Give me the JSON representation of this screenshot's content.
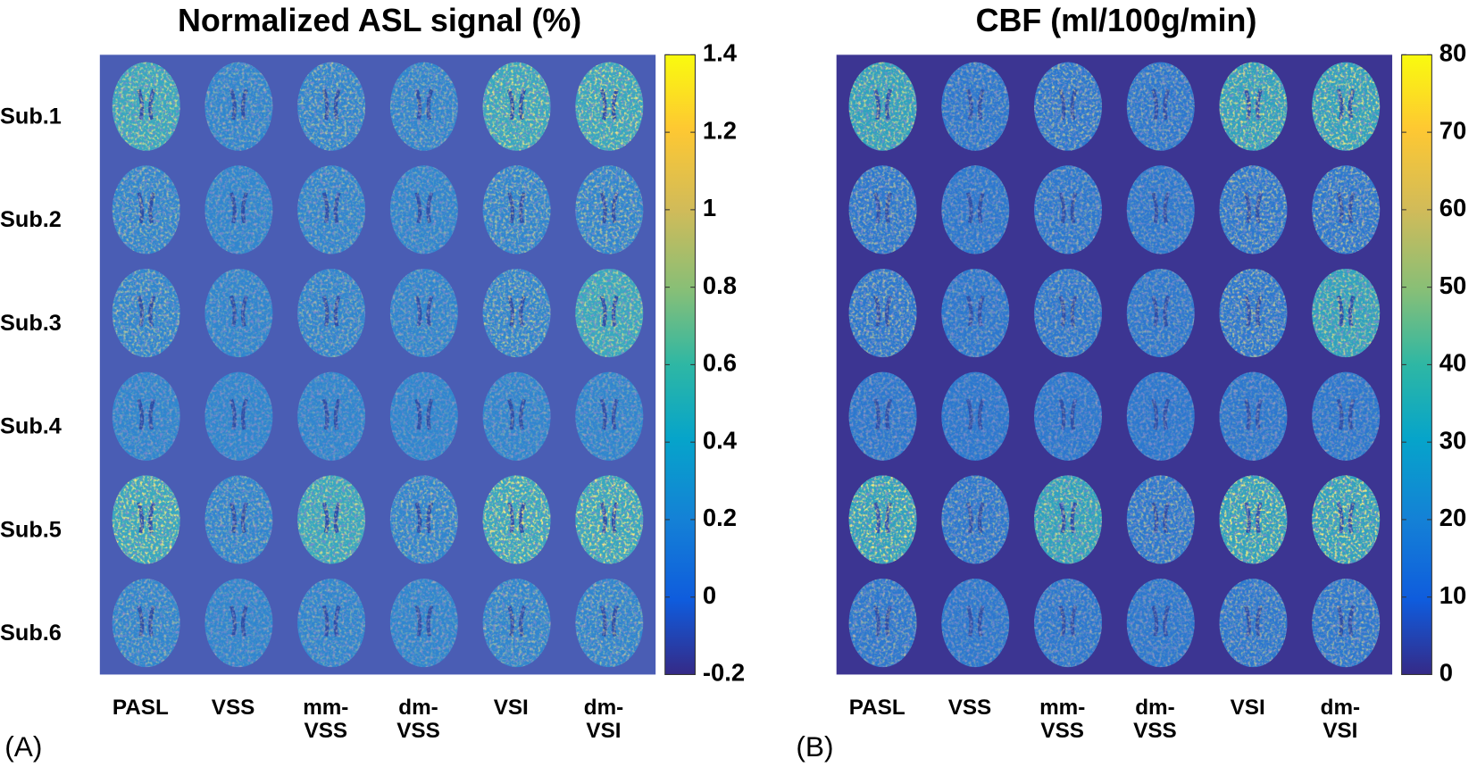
{
  "panels": [
    {
      "label": "(A)",
      "title": "Normalized ASL signal (%)",
      "rows": [
        "Sub.1",
        "Sub.2",
        "Sub.3",
        "Sub.4",
        "Sub.5",
        "Sub.6"
      ],
      "columns": [
        [
          "PASL"
        ],
        [
          "VSS"
        ],
        [
          "mm-",
          "VSS"
        ],
        [
          "dm-",
          "VSS"
        ],
        [
          "VSI"
        ],
        [
          "dm-",
          "VSI"
        ]
      ],
      "colorbar": {
        "lim": [
          -0.2,
          1.4
        ],
        "ticks": [
          1.4,
          1.2,
          1,
          0.8,
          0.6,
          0.4,
          0.2,
          0,
          -0.2
        ]
      }
    },
    {
      "label": "(B)",
      "title": "CBF (ml/100g/min)",
      "columns": [
        [
          "PASL"
        ],
        [
          "VSS"
        ],
        [
          "mm-",
          "VSS"
        ],
        [
          "dm-",
          "VSS"
        ],
        [
          "VSI"
        ],
        [
          "dm-",
          "VSI"
        ]
      ],
      "colorbar": {
        "lim": [
          0,
          80
        ],
        "ticks": [
          80,
          70,
          60,
          50,
          40,
          30,
          20,
          10,
          0
        ]
      }
    }
  ]
}
